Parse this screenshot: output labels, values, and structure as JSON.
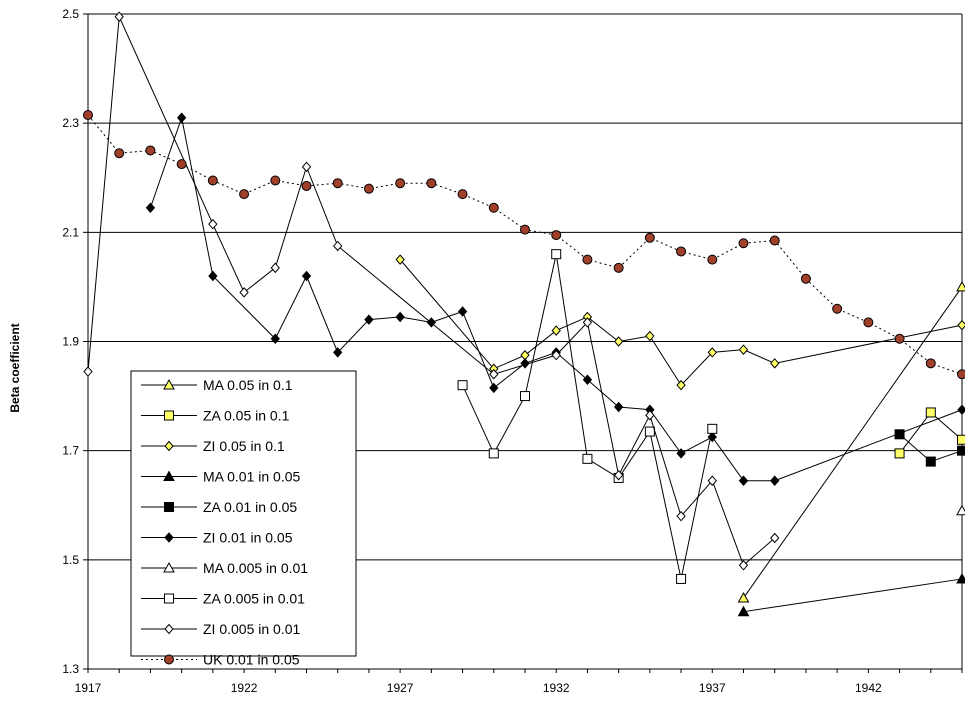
{
  "chart_data": {
    "type": "line",
    "title": "",
    "xlabel": "",
    "ylabel": "Beta coefficient",
    "xlim": [
      1917,
      1945
    ],
    "ylim": [
      1.3,
      2.5
    ],
    "yticks": [
      "1.3",
      "1.5",
      "1.7",
      "1.9",
      "2.1",
      "2.3",
      "2.5"
    ],
    "xticks": [
      "1917",
      "1922",
      "1927",
      "1932",
      "1937",
      "1942"
    ],
    "grid": "horizontal",
    "legend_position": "lower-left",
    "series": [
      {
        "name": "MA 0.05 in 0.1",
        "marker": "triangle",
        "fill": "#ffff66",
        "line": "solid",
        "points": [
          [
            1938,
            1.43
          ],
          [
            1945,
            2.0
          ]
        ]
      },
      {
        "name": "ZA 0.05 in 0.1",
        "marker": "square",
        "fill": "#ffff66",
        "line": "solid",
        "points": [
          [
            1943,
            1.695
          ],
          [
            1944,
            1.77
          ],
          [
            1945,
            1.72
          ]
        ]
      },
      {
        "name": "ZI 0.05 in 0.1",
        "marker": "diamond",
        "fill": "#ffff66",
        "line": "solid",
        "points": [
          [
            1927,
            2.05
          ],
          [
            1930,
            1.85
          ],
          [
            1931,
            1.875
          ],
          [
            1932,
            1.92
          ],
          [
            1933,
            1.945
          ],
          [
            1934,
            1.9
          ],
          [
            1935,
            1.91
          ],
          [
            1936,
            1.82
          ],
          [
            1937,
            1.88
          ],
          [
            1938,
            1.885
          ],
          [
            1939,
            1.86
          ],
          [
            1945,
            1.93
          ]
        ]
      },
      {
        "name": "MA 0.01 in 0.05",
        "marker": "triangle",
        "fill": "#000000",
        "line": "solid",
        "points": [
          [
            1938,
            1.405
          ],
          [
            1945,
            1.465
          ]
        ]
      },
      {
        "name": "ZA 0.01 in 0.05",
        "marker": "square",
        "fill": "#000000",
        "line": "solid",
        "points": [
          [
            1943,
            1.73
          ],
          [
            1944,
            1.68
          ],
          [
            1945,
            1.7
          ]
        ]
      },
      {
        "name": "ZI 0.01 in 0.05",
        "marker": "diamond",
        "fill": "#000000",
        "line": "solid",
        "points": [
          [
            1919,
            2.145
          ],
          [
            1920,
            2.31
          ],
          [
            1921,
            2.02
          ],
          [
            1923,
            1.905
          ],
          [
            1924,
            2.02
          ],
          [
            1925,
            1.88
          ],
          [
            1926,
            1.94
          ],
          [
            1927,
            1.945
          ],
          [
            1928,
            1.935
          ],
          [
            1929,
            1.955
          ],
          [
            1930,
            1.815
          ],
          [
            1931,
            1.86
          ],
          [
            1932,
            1.88
          ],
          [
            1933,
            1.83
          ],
          [
            1934,
            1.78
          ],
          [
            1935,
            1.775
          ],
          [
            1936,
            1.695
          ],
          [
            1937,
            1.725
          ],
          [
            1938,
            1.645
          ],
          [
            1939,
            1.645
          ],
          [
            1945,
            1.775
          ]
        ]
      },
      {
        "name": "MA 0.005 in 0.01",
        "marker": "triangle",
        "fill": "#ffffff",
        "line": "solid",
        "points": [
          [
            1945,
            1.59
          ]
        ]
      },
      {
        "name": "ZA 0.005 in 0.01",
        "marker": "square",
        "fill": "#ffffff",
        "line": "solid",
        "points": [
          [
            1929,
            1.82
          ],
          [
            1930,
            1.695
          ],
          [
            1931,
            1.8
          ],
          [
            1932,
            2.06
          ],
          [
            1933,
            1.685
          ],
          [
            1934,
            1.65
          ],
          [
            1935,
            1.735
          ],
          [
            1936,
            1.465
          ],
          [
            1937,
            1.74
          ]
        ]
      },
      {
        "name": "ZI 0.005 in 0.01",
        "marker": "diamond",
        "fill": "#ffffff",
        "line": "solid",
        "points": [
          [
            1917,
            1.845
          ],
          [
            1918,
            2.495
          ],
          [
            1921,
            2.115
          ],
          [
            1922,
            1.99
          ],
          [
            1923,
            2.035
          ],
          [
            1924,
            2.22
          ],
          [
            1925,
            2.075
          ],
          [
            1930,
            1.84
          ],
          [
            1932,
            1.875
          ],
          [
            1933,
            1.935
          ],
          [
            1934,
            1.655
          ],
          [
            1935,
            1.765
          ],
          [
            1936,
            1.58
          ],
          [
            1937,
            1.645
          ],
          [
            1938,
            1.49
          ],
          [
            1939,
            1.54
          ]
        ]
      },
      {
        "name": "UK 0.01 in 0.05",
        "marker": "circle",
        "fill": "#a0402a",
        "line": "dotted",
        "points": [
          [
            1917,
            2.315
          ],
          [
            1918,
            2.245
          ],
          [
            1919,
            2.25
          ],
          [
            1920,
            2.225
          ],
          [
            1921,
            2.195
          ],
          [
            1922,
            2.17
          ],
          [
            1923,
            2.195
          ],
          [
            1924,
            2.185
          ],
          [
            1925,
            2.19
          ],
          [
            1926,
            2.18
          ],
          [
            1927,
            2.19
          ],
          [
            1928,
            2.19
          ],
          [
            1929,
            2.17
          ],
          [
            1930,
            2.145
          ],
          [
            1931,
            2.105
          ],
          [
            1932,
            2.095
          ],
          [
            1933,
            2.05
          ],
          [
            1934,
            2.035
          ],
          [
            1935,
            2.09
          ],
          [
            1936,
            2.065
          ],
          [
            1937,
            2.05
          ],
          [
            1938,
            2.08
          ],
          [
            1939,
            2.085
          ],
          [
            1940,
            2.015
          ],
          [
            1941,
            1.96
          ],
          [
            1942,
            1.935
          ],
          [
            1943,
            1.905
          ],
          [
            1944,
            1.86
          ],
          [
            1945,
            1.84
          ]
        ]
      }
    ]
  }
}
